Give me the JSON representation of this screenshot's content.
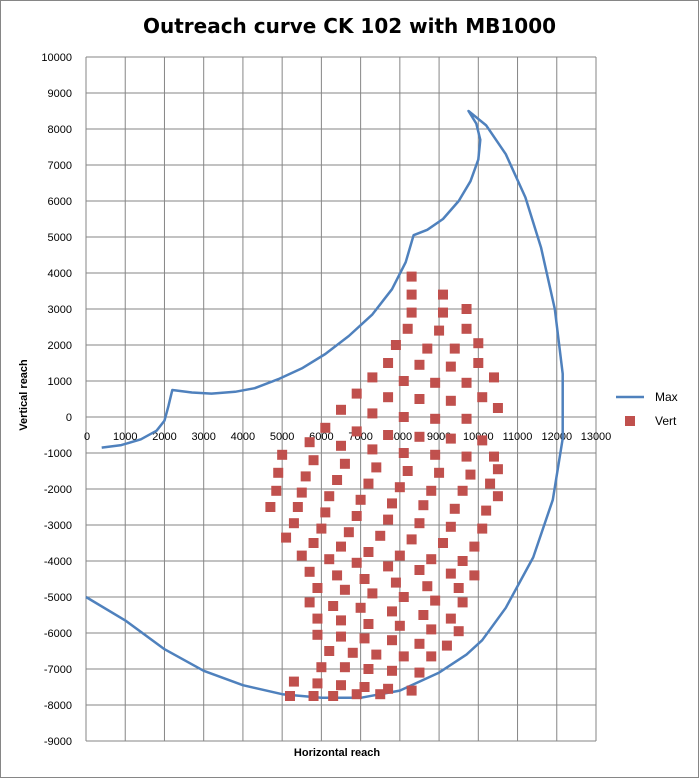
{
  "chart_data": {
    "type": "scatter",
    "title": "Outreach curve CK 102 with MB1000",
    "xlabel": "Horizontal reach",
    "ylabel": "Vertical reach",
    "xlim": [
      0,
      13000
    ],
    "ylim": [
      -9000,
      10000
    ],
    "x_ticks": [
      0,
      1000,
      2000,
      3000,
      4000,
      5000,
      6000,
      7000,
      8000,
      9000,
      10000,
      11000,
      12000,
      13000
    ],
    "y_ticks": [
      10000,
      9000,
      8000,
      7000,
      6000,
      5000,
      4000,
      3000,
      2000,
      1000,
      0,
      -1000,
      -2000,
      -3000,
      -4000,
      -5000,
      -6000,
      -7000,
      -8000,
      -9000
    ],
    "grid": true,
    "legend_position": "right",
    "colors": {
      "max_line": "#4F81BD",
      "vert_marker": "#C0504D",
      "grid": "#868686"
    },
    "series": [
      {
        "name": "Max",
        "kind": "line",
        "points": [
          [
            400,
            -850
          ],
          [
            900,
            -780
          ],
          [
            1400,
            -620
          ],
          [
            1800,
            -380
          ],
          [
            2000,
            -100
          ],
          [
            2100,
            300
          ],
          [
            2200,
            750
          ],
          [
            2700,
            680
          ],
          [
            3200,
            650
          ],
          [
            3800,
            700
          ],
          [
            4300,
            800
          ],
          [
            4900,
            1050
          ],
          [
            5500,
            1350
          ],
          [
            6100,
            1750
          ],
          [
            6700,
            2250
          ],
          [
            7300,
            2850
          ],
          [
            7800,
            3550
          ],
          [
            8150,
            4300
          ],
          [
            8350,
            5050
          ],
          [
            8700,
            5200
          ],
          [
            9100,
            5500
          ],
          [
            9500,
            6000
          ],
          [
            9800,
            6550
          ],
          [
            10000,
            7150
          ],
          [
            10050,
            7700
          ],
          [
            9950,
            8150
          ],
          [
            9750,
            8500
          ],
          [
            10200,
            8100
          ],
          [
            10700,
            7300
          ],
          [
            11200,
            6100
          ],
          [
            11600,
            4700
          ],
          [
            11950,
            3000
          ],
          [
            12150,
            1200
          ],
          [
            12150,
            -600
          ],
          [
            11900,
            -2300
          ],
          [
            11400,
            -3900
          ],
          [
            10700,
            -5300
          ],
          [
            10100,
            -6200
          ],
          [
            9700,
            -6600
          ],
          [
            9000,
            -7100
          ],
          [
            8000,
            -7600
          ],
          [
            7000,
            -7800
          ],
          [
            6000,
            -7800
          ],
          [
            5000,
            -7700
          ],
          [
            4000,
            -7450
          ],
          [
            3000,
            -7050
          ],
          [
            2000,
            -6450
          ],
          [
            1000,
            -5650
          ],
          [
            0,
            -5000
          ]
        ]
      },
      {
        "name": "Vert",
        "kind": "scatter",
        "points": [
          [
            8300,
            3900
          ],
          [
            8300,
            3400
          ],
          [
            9100,
            3400
          ],
          [
            9700,
            3000
          ],
          [
            8300,
            2900
          ],
          [
            9100,
            2900
          ],
          [
            8200,
            2450
          ],
          [
            9000,
            2400
          ],
          [
            9700,
            2450
          ],
          [
            7900,
            2000
          ],
          [
            8700,
            1900
          ],
          [
            9400,
            1900
          ],
          [
            10000,
            2050
          ],
          [
            7700,
            1500
          ],
          [
            8500,
            1450
          ],
          [
            9300,
            1400
          ],
          [
            10000,
            1500
          ],
          [
            7300,
            1100
          ],
          [
            8100,
            1000
          ],
          [
            8900,
            950
          ],
          [
            9700,
            950
          ],
          [
            10400,
            1100
          ],
          [
            6900,
            650
          ],
          [
            7700,
            550
          ],
          [
            8500,
            500
          ],
          [
            9300,
            450
          ],
          [
            10100,
            550
          ],
          [
            6500,
            200
          ],
          [
            7300,
            100
          ],
          [
            8100,
            0
          ],
          [
            8900,
            -50
          ],
          [
            9700,
            -50
          ],
          [
            10500,
            250
          ],
          [
            6100,
            -300
          ],
          [
            6900,
            -400
          ],
          [
            7700,
            -500
          ],
          [
            8500,
            -550
          ],
          [
            9300,
            -600
          ],
          [
            10100,
            -650
          ],
          [
            5700,
            -700
          ],
          [
            6500,
            -800
          ],
          [
            7300,
            -900
          ],
          [
            8100,
            -1000
          ],
          [
            8900,
            -1050
          ],
          [
            9700,
            -1100
          ],
          [
            10400,
            -1100
          ],
          [
            5000,
            -1050
          ],
          [
            5800,
            -1200
          ],
          [
            6600,
            -1300
          ],
          [
            7400,
            -1400
          ],
          [
            8200,
            -1500
          ],
          [
            9000,
            -1550
          ],
          [
            9800,
            -1600
          ],
          [
            10500,
            -1450
          ],
          [
            4900,
            -1550
          ],
          [
            5600,
            -1650
          ],
          [
            6400,
            -1750
          ],
          [
            7200,
            -1850
          ],
          [
            8000,
            -1950
          ],
          [
            8800,
            -2050
          ],
          [
            9600,
            -2050
          ],
          [
            10300,
            -1850
          ],
          [
            4850,
            -2050
          ],
          [
            5500,
            -2100
          ],
          [
            6200,
            -2200
          ],
          [
            7000,
            -2300
          ],
          [
            7800,
            -2400
          ],
          [
            8600,
            -2450
          ],
          [
            9400,
            -2550
          ],
          [
            10200,
            -2600
          ],
          [
            10500,
            -2200
          ],
          [
            4700,
            -2500
          ],
          [
            5400,
            -2500
          ],
          [
            6100,
            -2650
          ],
          [
            6900,
            -2750
          ],
          [
            7700,
            -2850
          ],
          [
            8500,
            -2950
          ],
          [
            9300,
            -3050
          ],
          [
            10100,
            -3100
          ],
          [
            5300,
            -2950
          ],
          [
            6000,
            -3100
          ],
          [
            6700,
            -3200
          ],
          [
            7500,
            -3300
          ],
          [
            8300,
            -3400
          ],
          [
            9100,
            -3500
          ],
          [
            9900,
            -3600
          ],
          [
            5100,
            -3350
          ],
          [
            5800,
            -3500
          ],
          [
            6500,
            -3600
          ],
          [
            7200,
            -3750
          ],
          [
            8000,
            -3850
          ],
          [
            8800,
            -3950
          ],
          [
            9600,
            -4000
          ],
          [
            5500,
            -3850
          ],
          [
            6200,
            -3950
          ],
          [
            6900,
            -4050
          ],
          [
            7700,
            -4150
          ],
          [
            8500,
            -4250
          ],
          [
            9300,
            -4350
          ],
          [
            9900,
            -4400
          ],
          [
            5700,
            -4300
          ],
          [
            6400,
            -4400
          ],
          [
            7100,
            -4500
          ],
          [
            7900,
            -4600
          ],
          [
            8700,
            -4700
          ],
          [
            9500,
            -4750
          ],
          [
            5900,
            -4750
          ],
          [
            6600,
            -4800
          ],
          [
            7300,
            -4900
          ],
          [
            8100,
            -5000
          ],
          [
            8900,
            -5100
          ],
          [
            9600,
            -5150
          ],
          [
            5700,
            -5150
          ],
          [
            6300,
            -5250
          ],
          [
            7000,
            -5300
          ],
          [
            7800,
            -5400
          ],
          [
            8600,
            -5500
          ],
          [
            9300,
            -5600
          ],
          [
            5900,
            -5600
          ],
          [
            6500,
            -5650
          ],
          [
            7200,
            -5750
          ],
          [
            8000,
            -5800
          ],
          [
            8800,
            -5900
          ],
          [
            9500,
            -5950
          ],
          [
            5900,
            -6050
          ],
          [
            6500,
            -6100
          ],
          [
            7100,
            -6150
          ],
          [
            7800,
            -6200
          ],
          [
            8500,
            -6300
          ],
          [
            9200,
            -6350
          ],
          [
            6200,
            -6500
          ],
          [
            6800,
            -6550
          ],
          [
            7400,
            -6600
          ],
          [
            8100,
            -6650
          ],
          [
            8800,
            -6650
          ],
          [
            6000,
            -6950
          ],
          [
            6600,
            -6950
          ],
          [
            7200,
            -7000
          ],
          [
            7800,
            -7050
          ],
          [
            8500,
            -7100
          ],
          [
            5300,
            -7350
          ],
          [
            5900,
            -7400
          ],
          [
            6500,
            -7450
          ],
          [
            7100,
            -7500
          ],
          [
            7700,
            -7550
          ],
          [
            8300,
            -7600
          ],
          [
            5200,
            -7750
          ],
          [
            5800,
            -7750
          ],
          [
            6300,
            -7750
          ],
          [
            6900,
            -7700
          ],
          [
            7500,
            -7700
          ]
        ]
      }
    ]
  }
}
